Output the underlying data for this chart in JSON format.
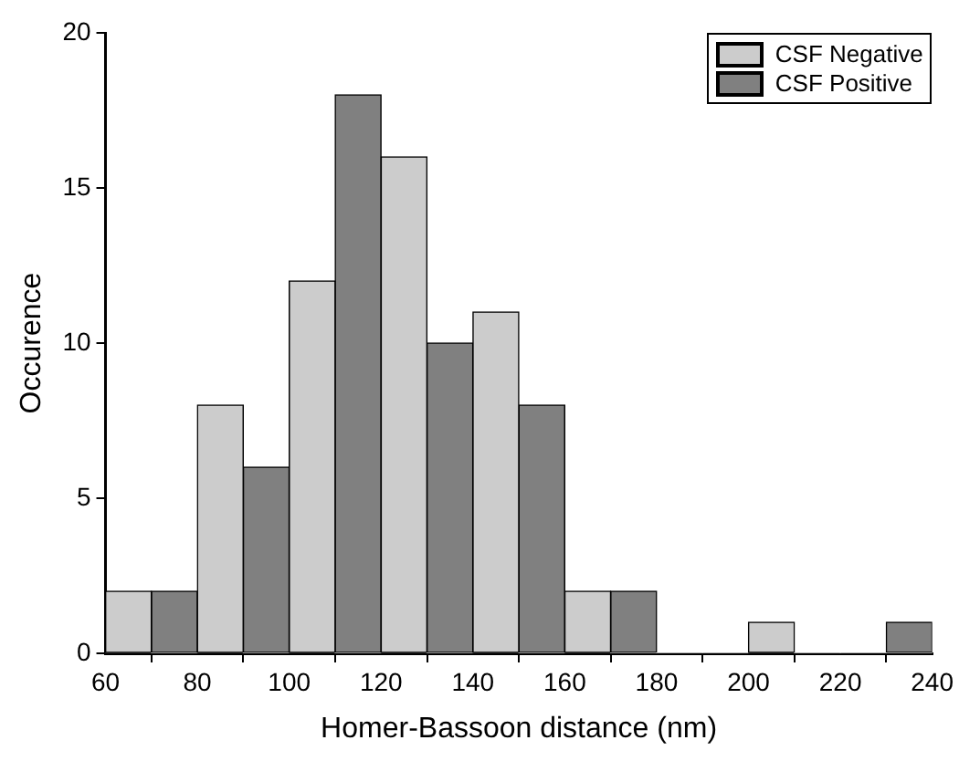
{
  "chart_data": {
    "type": "histogram",
    "xlabel": "Homer-Bassoon distance (nm)",
    "ylabel": "Occurence",
    "bins": [
      60,
      70,
      80,
      90,
      100,
      110,
      120,
      130,
      140,
      150,
      160,
      170,
      180,
      190,
      200,
      210,
      220,
      230,
      240
    ],
    "series": [
      {
        "name": "CSF Negative",
        "color": "#cccccc",
        "values": [
          2,
          0,
          8,
          0,
          12,
          0,
          16,
          0,
          11,
          0,
          2,
          0,
          0,
          0,
          1,
          0,
          0,
          0
        ]
      },
      {
        "name": "CSF Positive",
        "color": "#808080",
        "values": [
          0,
          2,
          0,
          6,
          0,
          18,
          0,
          10,
          0,
          8,
          0,
          2,
          0,
          0,
          0,
          0,
          0,
          1
        ]
      }
    ],
    "xlim": [
      60,
      240
    ],
    "xticks": [
      60,
      80,
      100,
      120,
      140,
      160,
      180,
      200,
      220,
      240
    ],
    "ylim": [
      0,
      20
    ],
    "yticks": [
      0,
      5,
      10,
      15,
      20
    ],
    "grid": false,
    "legend": "top right"
  }
}
